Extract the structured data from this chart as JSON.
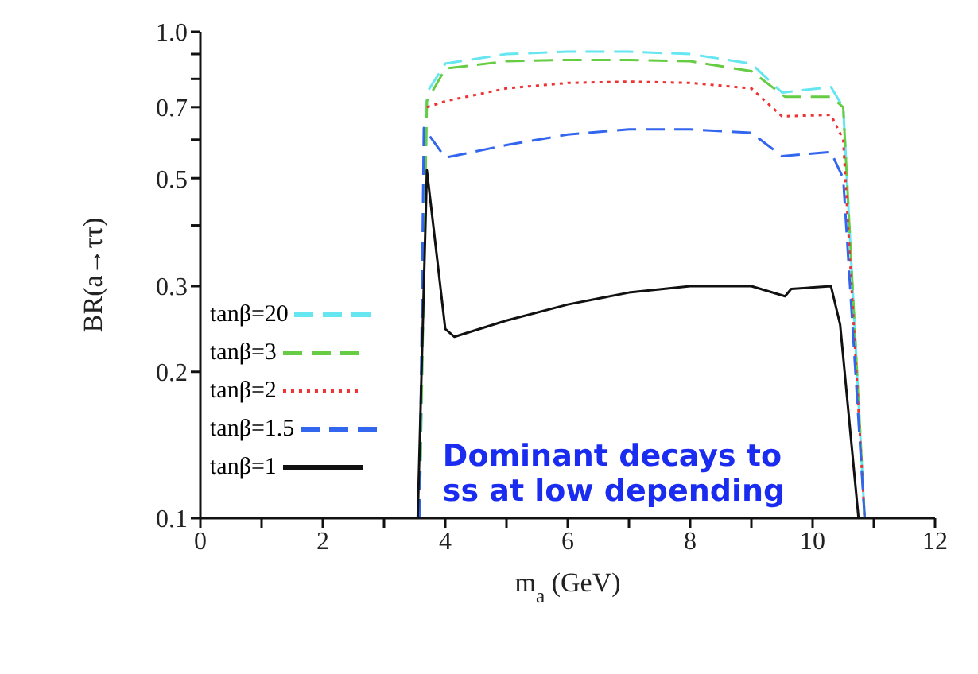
{
  "chart_data": {
    "type": "line",
    "xlabel": "m$_{a}$ (GeV)",
    "ylabel": "BR(a→ττ)",
    "log": "y",
    "xlim": [
      0,
      12
    ],
    "ylim": [
      0.1,
      1
    ],
    "xticks": [
      0,
      {
        "value": 1,
        "label": null
      },
      2,
      {
        "value": 3,
        "label": null
      },
      4,
      {
        "value": 5,
        "label": null
      },
      6,
      {
        "value": 7,
        "label": null
      },
      8,
      {
        "value": 9,
        "label": null
      },
      10,
      {
        "value": 11,
        "label": null
      },
      12
    ],
    "yticks": [
      0.1,
      0.2,
      0.3,
      {
        "value": 0.4,
        "label": null
      },
      0.5,
      {
        "value": 0.6,
        "label": null
      },
      0.7,
      {
        "value": 0.8,
        "label": null
      },
      {
        "value": 0.9,
        "label": null
      },
      {
        "value": 1,
        "label": "1.0"
      }
    ],
    "legend": "bottom left",
    "marker": "none",
    "series": [
      {
        "name": "tanβ=20",
        "color": "#66e6f0",
        "line_style": "dashed",
        "x": [
          3.58,
          3.7,
          4,
          5,
          6,
          7,
          8,
          9,
          9.5,
          10.3,
          10.5,
          10.85
        ],
        "values": [
          0.1,
          0.75,
          0.86,
          0.9,
          0.91,
          0.91,
          0.9,
          0.86,
          0.75,
          0.77,
          0.7,
          0.1
        ]
      },
      {
        "name": "tanβ=3",
        "color": "#66cc44",
        "line_style": "dashed",
        "x": [
          3.58,
          3.7,
          4,
          5,
          6,
          7,
          8,
          9,
          9.55,
          10.3,
          10.5,
          10.85
        ],
        "values": [
          0.1,
          0.72,
          0.84,
          0.87,
          0.875,
          0.875,
          0.87,
          0.83,
          0.735,
          0.735,
          0.7,
          0.1
        ]
      },
      {
        "name": "tanβ=2",
        "color": "#ee3333",
        "line_style": "dotted",
        "x": [
          3.7,
          4,
          5,
          6,
          7,
          8,
          9,
          9.5,
          10.3,
          10.5,
          10.85
        ],
        "values": [
          0.7,
          0.72,
          0.765,
          0.785,
          0.79,
          0.785,
          0.765,
          0.67,
          0.675,
          0.6,
          0.1
        ]
      },
      {
        "name": "tanβ=1.5",
        "color": "#3366ee",
        "line_style": "dashed",
        "x": [
          3.58,
          3.65,
          4,
          5,
          6,
          7,
          8,
          9,
          9.5,
          10.3,
          10.5,
          10.85
        ],
        "values": [
          0.1,
          0.634,
          0.551,
          0.585,
          0.615,
          0.63,
          0.63,
          0.62,
          0.555,
          0.566,
          0.5,
          0.1
        ]
      },
      {
        "name": "tanβ=1",
        "color": "#111111",
        "line_style": "solid",
        "x": [
          3.55,
          3.7,
          4,
          4.15,
          5,
          6,
          7,
          8,
          9,
          9.55,
          9.65,
          10.3,
          10.45,
          10.75
        ],
        "values": [
          0.1,
          0.519,
          0.245,
          0.236,
          0.255,
          0.275,
          0.291,
          0.3,
          0.3,
          0.286,
          0.296,
          0.3,
          0.25,
          0.1
        ]
      }
    ],
    "annotations": [
      "Dominant decays to ss at low depending"
    ]
  }
}
